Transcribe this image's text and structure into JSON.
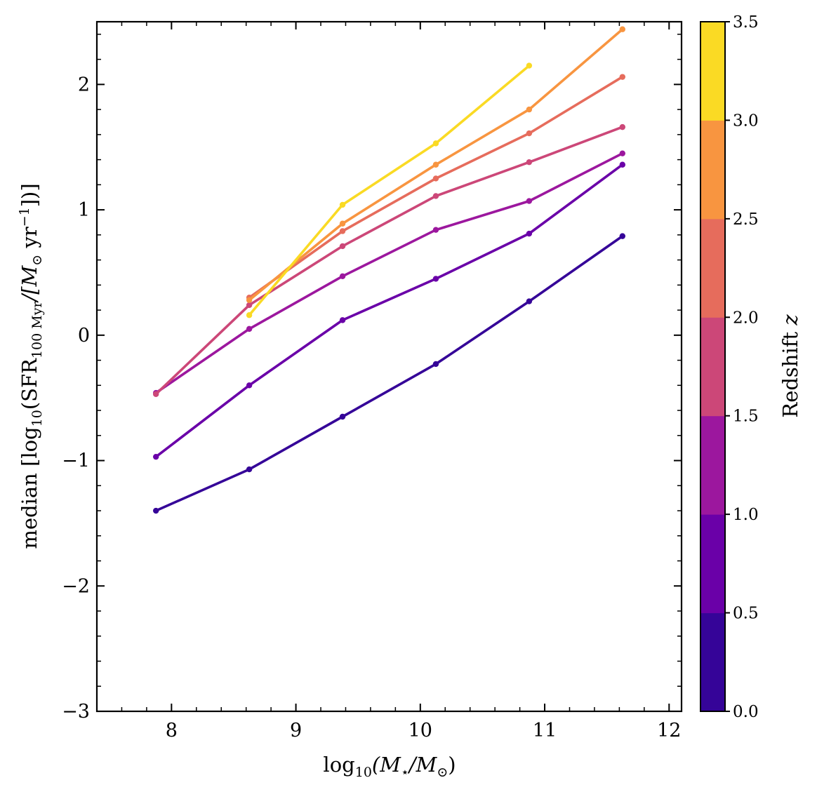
{
  "chart_data": {
    "type": "line",
    "xlabel": "log10(M⋆/M⊙)",
    "xlabel_parts": {
      "base": "log",
      "sub": "10",
      "body": "(M",
      "star": "⋆",
      "mid": "/M",
      "sun": "⊙",
      "close": ")"
    },
    "ylabel": "median [log10(SFR100 Myr/[M⊙ yr−1])]",
    "ylabel_parts": {
      "a": "median [log",
      "a_sub": "10",
      "b": "(SFR",
      "b_sub": "100 Myr",
      "c": "/[M",
      "c_sun": "⊙",
      "d": " yr",
      "d_sup": "−1",
      "e": "])]"
    },
    "xlim": [
      7.4,
      12.1
    ],
    "ylim": [
      -3,
      2.5
    ],
    "xticks": [
      8,
      9,
      10,
      11,
      12
    ],
    "xtick_labels": [
      "8",
      "9",
      "10",
      "11",
      "12"
    ],
    "yticks": [
      -3,
      -2,
      -1,
      0,
      1,
      2
    ],
    "ytick_labels": [
      "−3",
      "−2",
      "−1",
      "0",
      "1",
      "2"
    ],
    "grid": false,
    "colorbar": {
      "label": "Redshift z",
      "label_parts": {
        "text": "Redshift ",
        "var": "z"
      },
      "range": [
        0,
        3.5
      ],
      "ticks": [
        "0.0",
        "0.5",
        "1.0",
        "1.5",
        "2.0",
        "2.5",
        "3.0",
        "3.5"
      ],
      "colors": [
        "#350498",
        "#6a00a8",
        "#9c179e",
        "#cc4778",
        "#e66c5c",
        "#f89540",
        "#fada24"
      ]
    },
    "series": [
      {
        "color": "#350498",
        "x": [
          7.875,
          8.625,
          9.375,
          10.125,
          10.875,
          11.625
        ],
        "y": [
          -1.4,
          -1.07,
          -0.65,
          -0.23,
          0.27,
          0.79
        ]
      },
      {
        "color": "#6a00a8",
        "x": [
          7.875,
          8.625,
          9.375,
          10.125,
          10.875,
          11.625
        ],
        "y": [
          -0.97,
          -0.4,
          0.12,
          0.45,
          0.81,
          1.36
        ]
      },
      {
        "color": "#9c179e",
        "x": [
          7.875,
          8.625,
          9.375,
          10.125,
          10.875,
          11.625
        ],
        "y": [
          -0.46,
          0.05,
          0.47,
          0.84,
          1.07,
          1.45
        ]
      },
      {
        "color": "#cc4778",
        "x": [
          7.875,
          8.625,
          9.375,
          10.125,
          10.875,
          11.625
        ],
        "y": [
          -0.47,
          0.24,
          0.71,
          1.11,
          1.38,
          1.66
        ]
      },
      {
        "color": "#e66c5c",
        "x": [
          8.625,
          9.375,
          10.125,
          10.875,
          11.625
        ],
        "y": [
          0.3,
          0.83,
          1.25,
          1.61,
          2.06
        ]
      },
      {
        "color": "#f89540",
        "x": [
          8.625,
          9.375,
          10.125,
          10.875,
          11.625
        ],
        "y": [
          0.28,
          0.89,
          1.36,
          1.8,
          2.44
        ]
      },
      {
        "color": "#fada24",
        "x": [
          8.625,
          9.375,
          10.125,
          10.875
        ],
        "y": [
          0.16,
          1.04,
          1.53,
          2.15
        ]
      }
    ]
  }
}
